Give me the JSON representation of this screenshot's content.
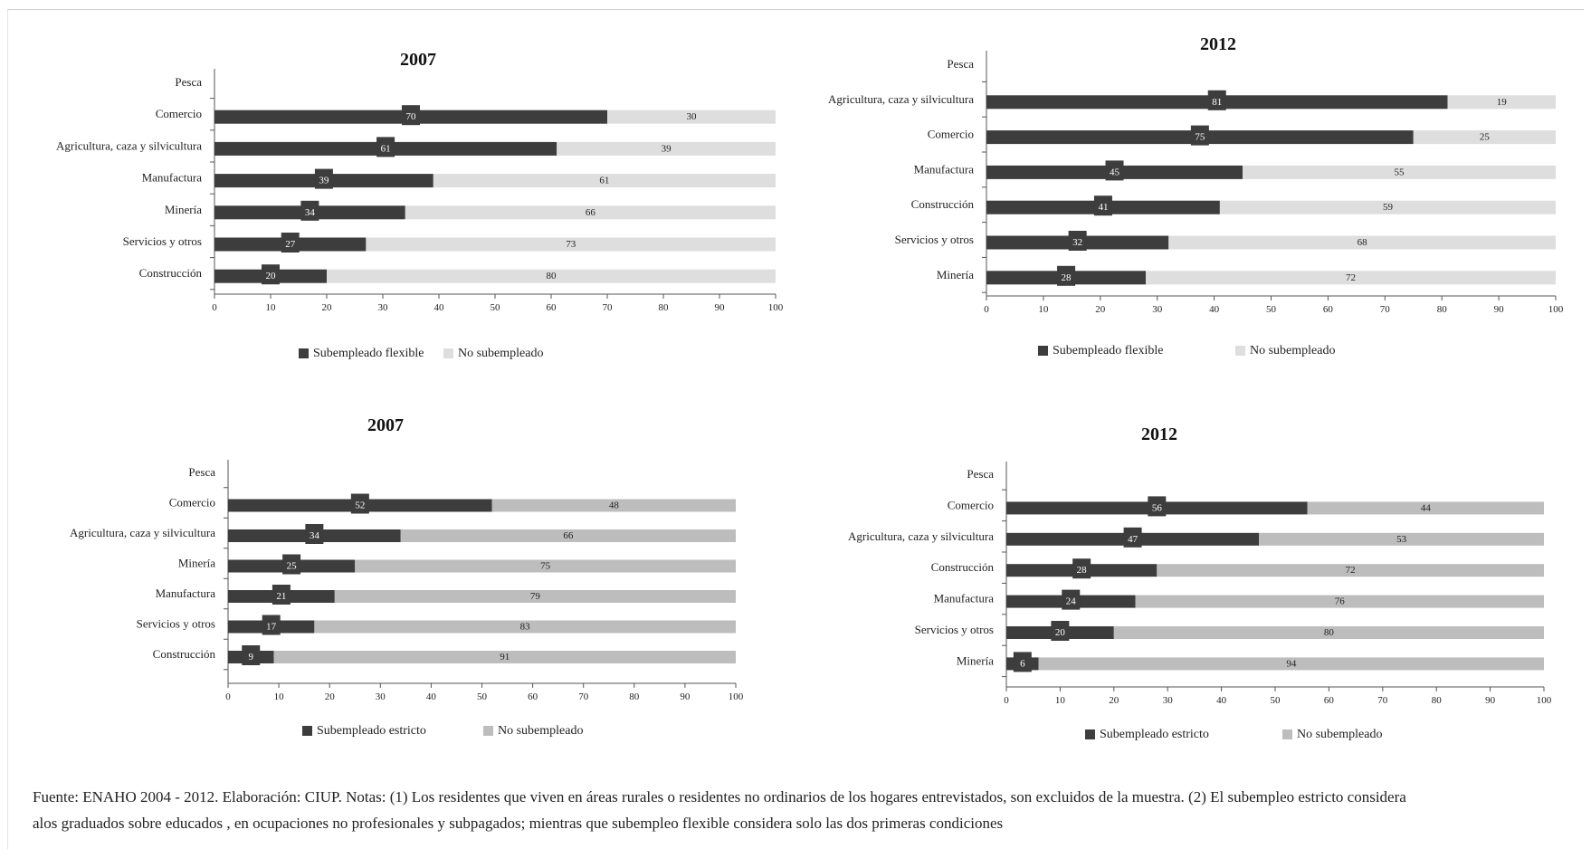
{
  "chart_data": [
    {
      "type": "bar",
      "stacked": true,
      "orientation": "horizontal",
      "title": "2007",
      "categories": [
        "Pesca",
        "Comercio",
        "Agricultura, caza y silvicultura",
        "Manufactura",
        "Minería",
        "Servicios y otros",
        "Construcción"
      ],
      "series": [
        {
          "name": "Subempleado flexible",
          "color": "#3d3d3d",
          "values": [
            null,
            70,
            61,
            39,
            34,
            27,
            20
          ]
        },
        {
          "name": "No subempleado",
          "color": "#dedede",
          "values": [
            null,
            30,
            39,
            61,
            66,
            73,
            80
          ]
        }
      ],
      "xlim": [
        0,
        100
      ],
      "xticks": [
        0,
        10,
        20,
        30,
        40,
        50,
        60,
        70,
        80,
        90,
        100
      ],
      "legend": "bottom"
    },
    {
      "type": "bar",
      "stacked": true,
      "orientation": "horizontal",
      "title": "2012",
      "categories": [
        "Pesca",
        "Agricultura, caza y silvicultura",
        "Comercio",
        "Manufactura",
        "Construcción",
        "Servicios y otros",
        "Minería"
      ],
      "series": [
        {
          "name": "Subempleado flexible",
          "color": "#3d3d3d",
          "values": [
            null,
            81,
            75,
            45,
            41,
            32,
            28
          ]
        },
        {
          "name": "No subempleado",
          "color": "#dedede",
          "values": [
            null,
            19,
            25,
            55,
            59,
            68,
            72
          ]
        }
      ],
      "xlim": [
        0,
        100
      ],
      "xticks": [
        0,
        10,
        20,
        30,
        40,
        50,
        60,
        70,
        80,
        90,
        100
      ],
      "legend": "bottom"
    },
    {
      "type": "bar",
      "stacked": true,
      "orientation": "horizontal",
      "title": "2007",
      "categories": [
        "Pesca",
        "Comercio",
        "Agricultura, caza y silvicultura",
        "Minería",
        "Manufactura",
        "Servicios y otros",
        "Construcción"
      ],
      "series": [
        {
          "name": "Subempleado estricto",
          "color": "#3d3d3d",
          "values": [
            null,
            52,
            34,
            25,
            21,
            17,
            9
          ]
        },
        {
          "name": "No subempleado",
          "color": "#bdbdbd",
          "values": [
            null,
            48,
            66,
            75,
            79,
            83,
            91
          ]
        }
      ],
      "xlim": [
        0,
        100
      ],
      "xticks": [
        0,
        10,
        20,
        30,
        40,
        50,
        60,
        70,
        80,
        90,
        100
      ],
      "legend": "bottom"
    },
    {
      "type": "bar",
      "stacked": true,
      "orientation": "horizontal",
      "title": "2012",
      "categories": [
        "Pesca",
        "Comercio",
        "Agricultura, caza y silvicultura",
        "Construcción",
        "Manufactura",
        "Servicios y otros",
        "Minería"
      ],
      "series": [
        {
          "name": "Subempleado estricto",
          "color": "#3d3d3d",
          "values": [
            null,
            56,
            47,
            28,
            24,
            20,
            6
          ]
        },
        {
          "name": "No subempleado",
          "color": "#bdbdbd",
          "values": [
            null,
            44,
            53,
            72,
            76,
            80,
            94
          ]
        }
      ],
      "xlim": [
        0,
        100
      ],
      "xticks": [
        0,
        10,
        20,
        30,
        40,
        50,
        60,
        70,
        80,
        90,
        100
      ],
      "legend": "bottom"
    }
  ],
  "footnote": {
    "line1": "Fuente: ENAHO 2004 - 2012. Elaboración: CIUP. Notas: (1) Los residentes que viven en áreas rurales o residentes no ordinarios de los hogares entrevistados, son excluidos de la muestra. (2) El subempleo estricto considera",
    "line2": "alos graduados sobre educados , en ocupaciones no profesionales y subpagados; mientras que subempleo flexible considera solo las dos primeras condiciones"
  }
}
